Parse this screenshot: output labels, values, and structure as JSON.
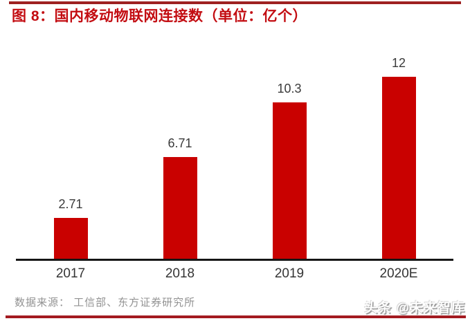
{
  "page": {
    "title": "图 8：国内移动物联网连接数（单位：亿个）",
    "source_note": "数据来源： 工信部、东方证券研究所",
    "watermark": "头条 @未来智库"
  },
  "colors": {
    "bar": "#C90100",
    "title": "#C30D12",
    "top_rule": "#9E2121",
    "bottom_rule": "#A31A20",
    "axis": "#161616",
    "value_label": "#3A3A3A",
    "tick_label": "#343434",
    "source_text": "#929292"
  },
  "chart_data": {
    "type": "bar",
    "title": "图 8：国内移动物联网连接数（单位：亿个）",
    "categories": [
      "2017",
      "2018",
      "2019",
      "2020E"
    ],
    "values": [
      2.71,
      6.71,
      10.3,
      12
    ],
    "value_labels": [
      "2.71",
      "6.71",
      "10.3",
      "12"
    ],
    "unit": "亿个",
    "xlabel": "",
    "ylabel": "",
    "ylim": [
      0,
      13.3
    ],
    "grid": false,
    "legend": false,
    "bar_color": "#C90100"
  }
}
